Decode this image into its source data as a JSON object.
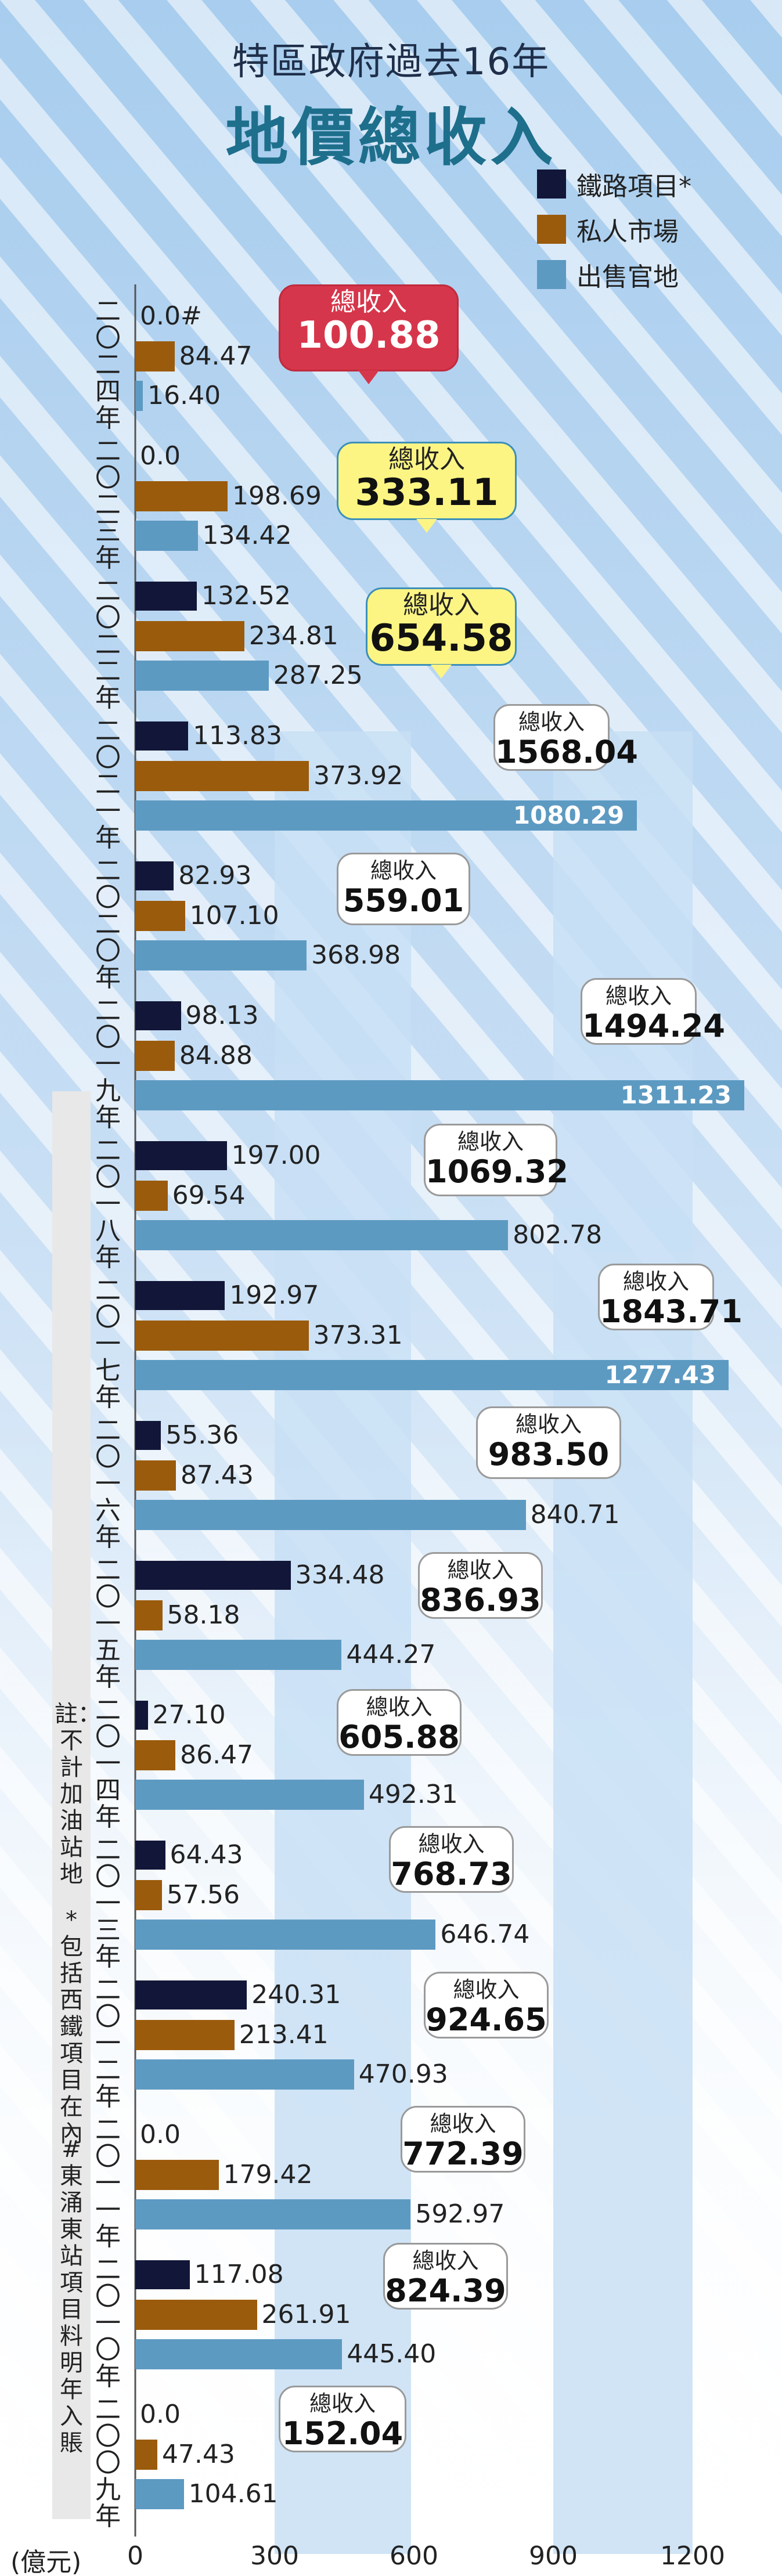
{
  "title": "特區政府過去16年",
  "subtitle_main": "地價總收入",
  "legend": [
    {
      "name": "鐵路項目*",
      "color": "#121638"
    },
    {
      "name": "私人市場",
      "color": "#9b5b0c"
    },
    {
      "name": "出售官地",
      "color": "#5d9ac2"
    }
  ],
  "unit_label": "(億元)",
  "total_label": "總收入",
  "note_main": "註：不計加油站地",
  "note_star": "*包括西鐵項目在內",
  "note_hash": "#東涌東站項目料明年入賬",
  "chart_data": {
    "type": "bar",
    "orientation": "horizontal",
    "xlim": [
      0,
      1400
    ],
    "x_ticks": [
      "0",
      "300",
      "600",
      "900",
      "1200"
    ],
    "categories": [
      "二〇二四年",
      "二〇二三年",
      "二〇二二年",
      "二〇二一年",
      "二〇二〇年",
      "二〇一九年",
      "二〇一八年",
      "二〇一七年",
      "二〇一六年",
      "二〇一五年",
      "二〇一四年",
      "二〇一三年",
      "二〇一二年",
      "二〇一一年",
      "二〇一〇年",
      "二〇〇九年"
    ],
    "series": [
      {
        "name": "鐵路項目*",
        "values": [
          0.0,
          0.0,
          132.52,
          113.83,
          82.93,
          98.13,
          197.0,
          192.97,
          55.36,
          334.48,
          27.1,
          64.43,
          240.31,
          0.0,
          117.08,
          0.0
        ],
        "labels": [
          "0.0#",
          "0.0",
          "132.52",
          "113.83",
          "82.93",
          "98.13",
          "197.00",
          "192.97",
          "55.36",
          "334.48",
          "27.10",
          "64.43",
          "240.31",
          "0.0",
          "117.08",
          "0.0"
        ]
      },
      {
        "name": "私人市場",
        "values": [
          84.47,
          198.69,
          234.81,
          373.92,
          107.1,
          84.88,
          69.54,
          373.31,
          87.43,
          58.18,
          86.47,
          57.56,
          213.41,
          179.42,
          261.91,
          47.43
        ],
        "labels": [
          "84.47",
          "198.69",
          "234.81",
          "373.92",
          "107.10",
          "84.88",
          "69.54",
          "373.31",
          "87.43",
          "58.18",
          "86.47",
          "57.56",
          "213.41",
          "179.42",
          "261.91",
          "47.43"
        ]
      },
      {
        "name": "出售官地",
        "values": [
          16.4,
          134.42,
          287.25,
          1080.29,
          368.98,
          1311.23,
          802.78,
          1277.43,
          840.71,
          444.27,
          492.31,
          646.74,
          470.93,
          592.97,
          445.4,
          104.61
        ],
        "labels": [
          "16.40",
          "134.42",
          "287.25",
          "1080.29",
          "368.98",
          "1311.23",
          "802.78",
          "1277.43",
          "840.71",
          "444.27",
          "492.31",
          "646.74",
          "470.93",
          "592.97",
          "445.40",
          "104.61"
        ]
      }
    ],
    "totals": [
      "100.88",
      "333.11",
      "654.58",
      "1568.04",
      "559.01",
      "1494.24",
      "1069.32",
      "1843.71",
      "983.50",
      "836.93",
      "605.88",
      "768.73",
      "924.65",
      "772.39",
      "824.39",
      "152.04"
    ]
  }
}
